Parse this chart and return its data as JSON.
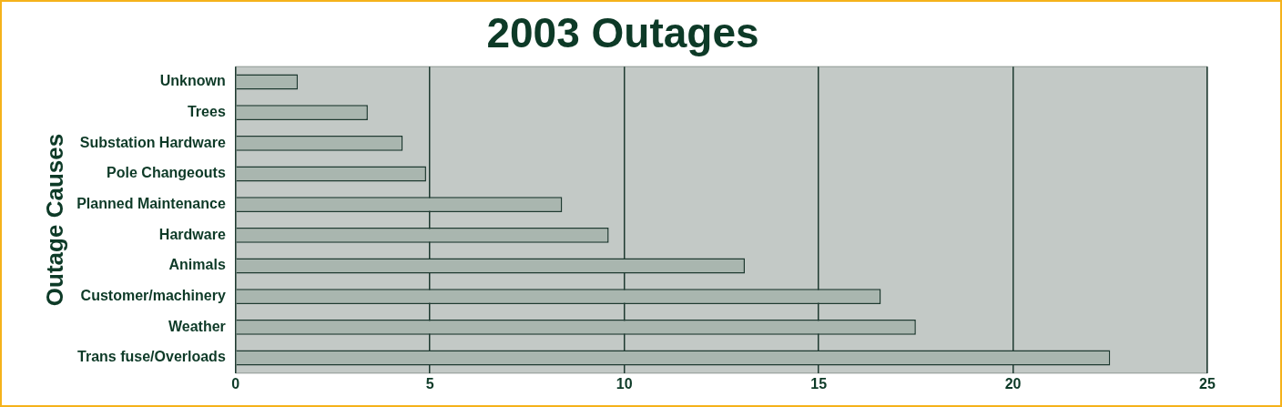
{
  "chart_data": {
    "type": "bar",
    "orientation": "horizontal",
    "title": "2003 Outages",
    "ylabel": "Outage Causes",
    "categories": [
      "Unknown",
      "Trees",
      "Substation Hardware",
      "Pole Changeouts",
      "Planned Maintenance",
      "Hardware",
      "Animals",
      "Customer/machinery",
      "Weather",
      "Trans fuse/Overloads"
    ],
    "values": [
      1.6,
      3.4,
      4.3,
      4.9,
      8.4,
      9.6,
      13.1,
      16.6,
      17.5,
      22.5
    ],
    "color": "#a9b6af",
    "xlim": [
      0,
      25
    ],
    "xticks": [
      0,
      5,
      10,
      15,
      20,
      25
    ],
    "grid": "x",
    "legend": false
  }
}
